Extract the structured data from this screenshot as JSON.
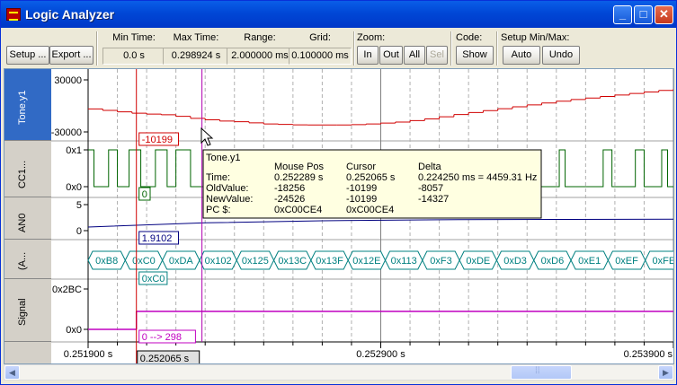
{
  "window": {
    "title": "Logic Analyzer"
  },
  "titlebar_buttons": {
    "minimize": "_",
    "maximize": "□",
    "close": "✕"
  },
  "toolbar": {
    "setup_label": "Setup ...",
    "export_label": "Export ...",
    "min_time": {
      "label": "Min Time:",
      "value": "0.0 s"
    },
    "max_time": {
      "label": "Max Time:",
      "value": "0.298924 s"
    },
    "range": {
      "label": "Range:",
      "value": "2.000000 ms"
    },
    "grid": {
      "label": "Grid:",
      "value": "0.100000 ms"
    },
    "zoom": {
      "label": "Zoom:",
      "in": "In",
      "out": "Out",
      "all": "All",
      "sel": "Sel"
    },
    "code": {
      "label": "Code:",
      "show": "Show"
    },
    "setup_minmax": {
      "label": "Setup Min/Max:",
      "auto": "Auto",
      "undo": "Undo"
    }
  },
  "signals": [
    {
      "name": "Tone.y1",
      "selected": true,
      "axis_top": "30000",
      "axis_bottom": "-30000",
      "color": "#d00000"
    },
    {
      "name": "CC1...",
      "selected": false,
      "axis_top": "0x1",
      "axis_bottom": "0x0",
      "color": "#006400"
    },
    {
      "name": "AN0",
      "selected": false,
      "axis_top": "5",
      "axis_bottom": "0",
      "color": "#000080"
    },
    {
      "name": "(A...",
      "selected": false,
      "color": "#008080"
    },
    {
      "name": "Signal",
      "selected": false,
      "axis_top": "0x2BC",
      "axis_bottom": "0x0",
      "color": "#c000c0"
    }
  ],
  "cursor_values": {
    "tone": "-10199",
    "cc1": "0",
    "an0": "1.9102",
    "a_bus": "0xC0",
    "signal": "0 --> 298",
    "time": "0.252065 s"
  },
  "time_axis": {
    "labels": [
      "0.251900 s",
      "0.252900 s",
      "0.253900 s"
    ]
  },
  "chart_data": [
    {
      "type": "line",
      "name": "Tone.y1",
      "ylim": [
        -30000,
        30000
      ],
      "x": [
        0.2519,
        0.25195,
        0.252,
        0.25205,
        0.2521,
        0.25215,
        0.2522,
        0.25225,
        0.2523,
        0.25235,
        0.2524,
        0.25245,
        0.2525,
        0.25255,
        0.2526,
        0.25265,
        0.2527,
        0.25275,
        0.2528,
        0.25285,
        0.2529,
        0.25295,
        0.253,
        0.25305,
        0.2531,
        0.25315,
        0.2532,
        0.25325,
        0.2533,
        0.25335,
        0.2534,
        0.25345,
        0.2535,
        0.25355,
        0.2536,
        0.25365,
        0.2537,
        0.25375,
        0.2538,
        0.25385,
        0.2539
      ],
      "values": [
        -3500,
        -5200,
        -6800,
        -8400,
        -9400,
        -10199,
        -12000,
        -14300,
        -16000,
        -17500,
        -18256,
        -19500,
        -20800,
        -21400,
        -21800,
        -22000,
        -22000,
        -22000,
        -21600,
        -20800,
        -19800,
        -18600,
        -17000,
        -15000,
        -12500,
        -10000,
        -7600,
        -5400,
        -3200,
        -1000,
        1200,
        3400,
        5400,
        7400,
        9000,
        10800,
        12600,
        14300,
        16000,
        17800,
        19500
      ]
    },
    {
      "type": "line",
      "name": "AN0",
      "ylim": [
        0,
        5
      ],
      "x": [
        0.2519,
        0.2523,
        0.2527,
        0.2531,
        0.2535,
        0.2539
      ],
      "values": [
        0.7,
        1.5,
        1.9,
        2.1,
        2.15,
        2.2
      ]
    }
  ],
  "bus_values": [
    "0xB8",
    "0xC0",
    "0xDA",
    "0x102",
    "0x125",
    "0x13C",
    "0x13F",
    "0x12E",
    "0x113",
    "0xF3",
    "0xDE",
    "0xD3",
    "0xD6",
    "0xE1",
    "0xEF",
    "0xFE"
  ],
  "tooltip": {
    "title": "Tone.y1",
    "headers": [
      "Mouse Pos",
      "Cursor",
      "Delta"
    ],
    "rows": [
      {
        "label": "Time:",
        "mouse": "0.252289 s",
        "cursor": "0.252065 s",
        "delta": "0.224250 ms = 4459.31 Hz"
      },
      {
        "label": "OldValue:",
        "mouse": "-18256",
        "cursor": "-10199",
        "delta": "-8057"
      },
      {
        "label": "NewValue:",
        "mouse": "-24526",
        "cursor": "-10199",
        "delta": "-14327"
      },
      {
        "label": "PC $:",
        "mouse": "0xC00CE4",
        "cursor": "0xC00CE4",
        "delta": ""
      }
    ]
  }
}
